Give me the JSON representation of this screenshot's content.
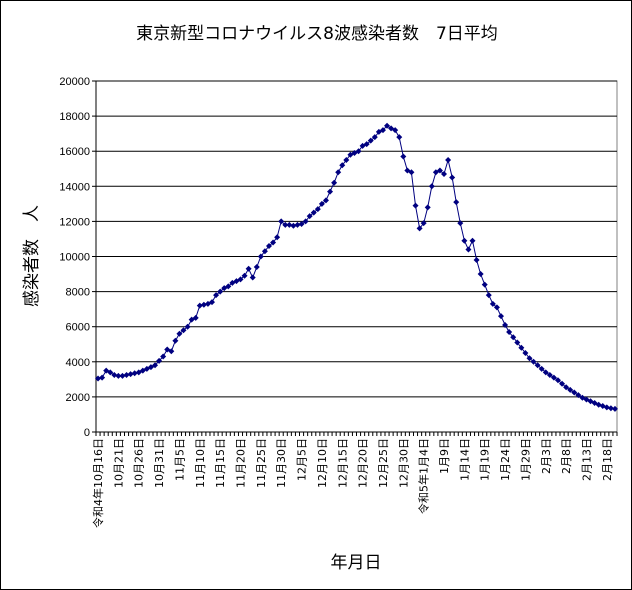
{
  "chart_data": {
    "type": "line",
    "title": "東京新型コロナウイルス8波感染者数　7日平均",
    "xlabel": "年月日",
    "ylabel": "感染者数　人",
    "ylim": [
      0,
      20000
    ],
    "yticks": [
      0,
      2000,
      4000,
      6000,
      8000,
      10000,
      12000,
      14000,
      16000,
      18000,
      20000
    ],
    "grid": "horizontal",
    "x_start_date": "2022-10-16",
    "x_tick_labels": [
      "令和4年10月16日",
      "10月21日",
      "10月26日",
      "10月31日",
      "11月5日",
      "11月10日",
      "11月15日",
      "11月20日",
      "11月25日",
      "11月30日",
      "12月5日",
      "12月10日",
      "12月15日",
      "12月20日",
      "12月25日",
      "12月30日",
      "令和5年1月4日",
      "1月9日",
      "1月14日",
      "1月19日",
      "1月24日",
      "1月29日",
      "2月3日",
      "2月8日",
      "2月13日",
      "2月18日"
    ],
    "series": [
      {
        "name": "",
        "color": "#000080",
        "values": [
          3050,
          3100,
          3500,
          3400,
          3250,
          3200,
          3200,
          3250,
          3300,
          3350,
          3400,
          3500,
          3600,
          3700,
          3800,
          4050,
          4300,
          4700,
          4600,
          5200,
          5600,
          5800,
          6000,
          6400,
          6500,
          7200,
          7250,
          7300,
          7400,
          7800,
          8000,
          8200,
          8300,
          8500,
          8600,
          8700,
          8900,
          9300,
          8800,
          9400,
          10000,
          10300,
          10600,
          10800,
          11100,
          12000,
          11800,
          11800,
          11750,
          11800,
          11850,
          12000,
          12300,
          12500,
          12700,
          13000,
          13200,
          13700,
          14200,
          14800,
          15200,
          15500,
          15800,
          15900,
          16000,
          16300,
          16400,
          16600,
          16800,
          17100,
          17200,
          17450,
          17300,
          17200,
          16800,
          15700,
          14900,
          14800,
          12900,
          11600,
          11900,
          12800,
          14000,
          14800,
          14900,
          14700,
          15500,
          14500,
          13100,
          11900,
          10900,
          10400,
          10900,
          9800,
          9000,
          8400,
          7800,
          7300,
          7100,
          6600,
          6100,
          5700,
          5400,
          5100,
          4800,
          4500,
          4200,
          4000,
          3800,
          3600,
          3400,
          3250,
          3100,
          2950,
          2750,
          2550,
          2400,
          2250,
          2100,
          1950,
          1850,
          1750,
          1650,
          1550,
          1480,
          1400,
          1350,
          1320
        ]
      }
    ]
  }
}
